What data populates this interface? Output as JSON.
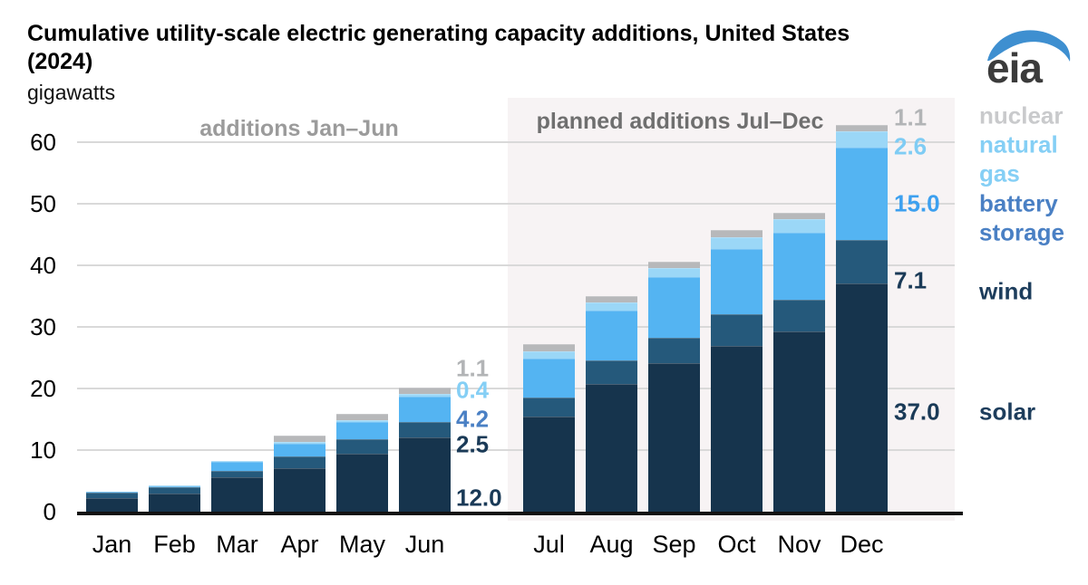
{
  "header": {
    "title_line1": "Cumulative utility-scale electric generating capacity additions, United States",
    "title_line2": "(2024)",
    "unit_label": "gigawatts",
    "logo_text": "eia",
    "logo_swoosh_color": "#3e8fd0"
  },
  "annotations": {
    "first_half": "additions Jan–Jun",
    "first_half_color": "#9b9b9b",
    "second_half": "planned additions Jul–Dec",
    "second_half_color": "#6f6f6f"
  },
  "y_axis": {
    "tick_labels": [
      "0",
      "10",
      "20",
      "30",
      "40",
      "50",
      "60"
    ]
  },
  "chart_data": {
    "type": "bar",
    "stacked": true,
    "title": "Cumulative utility-scale electric generating capacity additions, United States (2024)",
    "ylabel": "gigawatts",
    "ylim": [
      0,
      65
    ],
    "grid": "horizontal",
    "gridline_values": [
      10,
      20,
      30,
      40,
      50,
      60
    ],
    "categories": [
      "Jan",
      "Feb",
      "Mar",
      "Apr",
      "May",
      "Jun",
      "Jul",
      "Aug",
      "Sep",
      "Oct",
      "Nov",
      "Dec"
    ],
    "planned_region": {
      "months": [
        "Jul",
        "Aug",
        "Sep",
        "Oct",
        "Nov",
        "Dec"
      ],
      "background": "#f7f3f4"
    },
    "series": [
      {
        "name": "solar",
        "color": "#16344d",
        "values": [
          2.2,
          2.9,
          5.6,
          7.0,
          9.4,
          12.0,
          15.4,
          20.8,
          24.1,
          26.9,
          29.3,
          37.0
        ]
      },
      {
        "name": "wind",
        "color": "#25597b",
        "values": [
          0.9,
          1.0,
          1.0,
          2.0,
          2.3,
          2.5,
          3.1,
          3.7,
          4.1,
          5.1,
          5.1,
          7.1
        ]
      },
      {
        "name": "battery storage",
        "color": "#54b4f2",
        "values": [
          0.1,
          0.2,
          1.5,
          2.1,
          2.9,
          4.2,
          6.4,
          8.2,
          9.9,
          10.6,
          10.9,
          15.0
        ]
      },
      {
        "name": "natural gas",
        "color": "#9bd7f7",
        "values": [
          0.0,
          0.1,
          0.1,
          0.2,
          0.2,
          0.4,
          1.2,
          1.2,
          1.4,
          2.0,
          2.2,
          2.6
        ]
      },
      {
        "name": "nuclear",
        "color": "#b7b8ba",
        "values": [
          0.0,
          0.0,
          0.0,
          1.1,
          1.1,
          1.1,
          1.1,
          1.1,
          1.1,
          1.1,
          1.1,
          1.1
        ]
      }
    ],
    "callouts": {
      "jun": [
        {
          "series": "nuclear",
          "text": "1.1",
          "color": "#b2b4b6"
        },
        {
          "series": "natural gas",
          "text": "0.4",
          "color": "#85cff5"
        },
        {
          "series": "battery storage",
          "text": "4.2",
          "color": "#4a80c4"
        },
        {
          "series": "wind",
          "text": "2.5",
          "color": "#1a3a57"
        },
        {
          "series": "solar",
          "text": "12.0",
          "color": "#1a3a57"
        }
      ],
      "dec": [
        {
          "series": "nuclear",
          "text": "1.1",
          "color": "#b2b4b6"
        },
        {
          "series": "natural gas",
          "text": "2.6",
          "color": "#7fccf4"
        },
        {
          "series": "battery storage",
          "text": "15.0",
          "color": "#3da0ef"
        },
        {
          "series": "wind",
          "text": "7.1",
          "color": "#1a3a57"
        },
        {
          "series": "solar",
          "text": "37.0",
          "color": "#1a3a57"
        }
      ]
    }
  },
  "legend": {
    "items": [
      {
        "label": "nuclear",
        "lines": [
          "nuclear"
        ],
        "color": "#c9cacc"
      },
      {
        "label": "natural gas",
        "lines": [
          "natural",
          "gas"
        ],
        "color": "#85cff5"
      },
      {
        "label": "battery storage",
        "lines": [
          "battery",
          "storage"
        ],
        "color": "#4a80c4"
      },
      {
        "label": "wind",
        "lines": [
          "wind"
        ],
        "color": "#1d3d5c"
      },
      {
        "label": "solar",
        "lines": [
          "solar"
        ],
        "color": "#1d3d5c"
      }
    ]
  }
}
